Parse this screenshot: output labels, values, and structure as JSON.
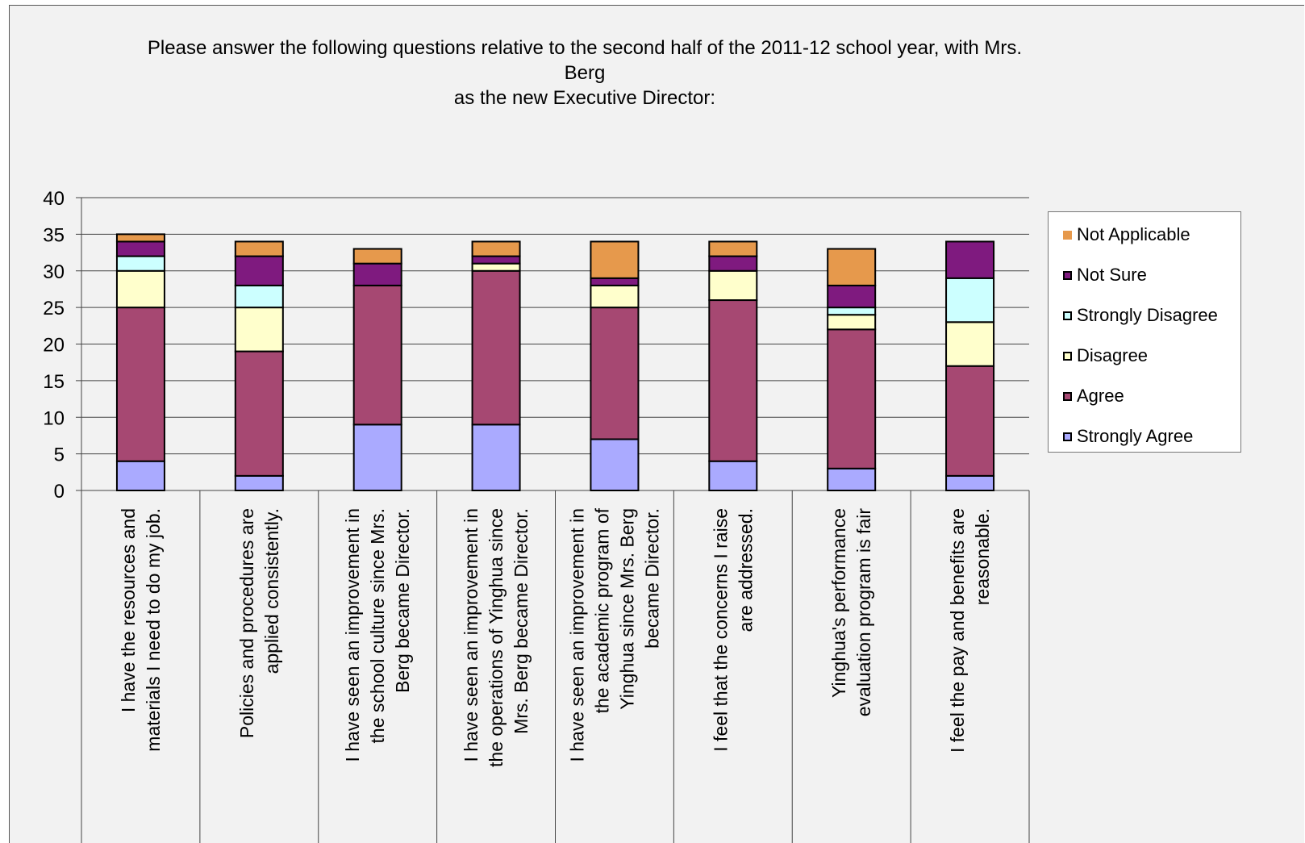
{
  "chart_data": {
    "type": "bar",
    "stacked": true,
    "title": "Please answer the following questions relative to the second half of the 2011-12 school year, with Mrs. Berg as the new Executive Director:",
    "title_lines": [
      "Please answer the following questions relative to the second half of the 2011-12 school year, with Mrs. Berg",
      "as the new Executive Director:"
    ],
    "xlabel": "",
    "ylabel": "",
    "ylim": [
      0,
      40
    ],
    "yticks": [
      0,
      5,
      10,
      15,
      20,
      25,
      30,
      35,
      40
    ],
    "grid": true,
    "legend_position": "right",
    "categories": [
      "I have the resources and materials I need to do my job.",
      "Policies and procedures are applied consistently.",
      "I have seen an improvement in the school culture since Mrs. Berg became Director.",
      "I have seen an improvement in the operations of Yinghua since Mrs. Berg became Director.",
      "I have seen an improvement in the academic program of Yinghua since Mrs. Berg became Director.",
      "I feel that the concerns I raise are addressed.",
      "Yinghua's performance evaluation program is fair",
      "I feel the pay and benefits are reasonable."
    ],
    "category_lines": [
      [
        "I have the resources and",
        "materials I need to do my job."
      ],
      [
        "Policies and procedures are",
        "applied consistently."
      ],
      [
        "I have seen an improvement in",
        "the school culture since Mrs.",
        "Berg became Director."
      ],
      [
        "I have seen an improvement in",
        "the operations of Yinghua since",
        "Mrs. Berg became Director."
      ],
      [
        "I have seen an improvement in",
        "the academic program of",
        "Yinghua since Mrs. Berg",
        "became Director."
      ],
      [
        "I feel that the concerns I raise",
        "are addressed."
      ],
      [
        "Yinghua's performance",
        "evaluation program is fair"
      ],
      [
        "I feel the pay and benefits are",
        "reasonable."
      ]
    ],
    "series": [
      {
        "name": "Strongly Agree",
        "color": "#aaaaff",
        "values": [
          4,
          2,
          9,
          9,
          7,
          4,
          3,
          2
        ]
      },
      {
        "name": "Agree",
        "color": "#a64872",
        "values": [
          21,
          17,
          19,
          21,
          18,
          22,
          19,
          15
        ]
      },
      {
        "name": "Disagree",
        "color": "#ffffcc",
        "values": [
          5,
          6,
          0,
          1,
          3,
          4,
          2,
          6
        ]
      },
      {
        "name": "Strongly Disagree",
        "color": "#ccffff",
        "values": [
          2,
          3,
          0,
          0,
          0,
          0,
          1,
          6
        ]
      },
      {
        "name": "Not Sure",
        "color": "#7f1a7f",
        "values": [
          2,
          4,
          3,
          1,
          1,
          2,
          3,
          5
        ]
      },
      {
        "name": "Not Applicable",
        "color": "#e6994c",
        "values": [
          1,
          2,
          2,
          2,
          5,
          2,
          5,
          0
        ]
      }
    ]
  }
}
